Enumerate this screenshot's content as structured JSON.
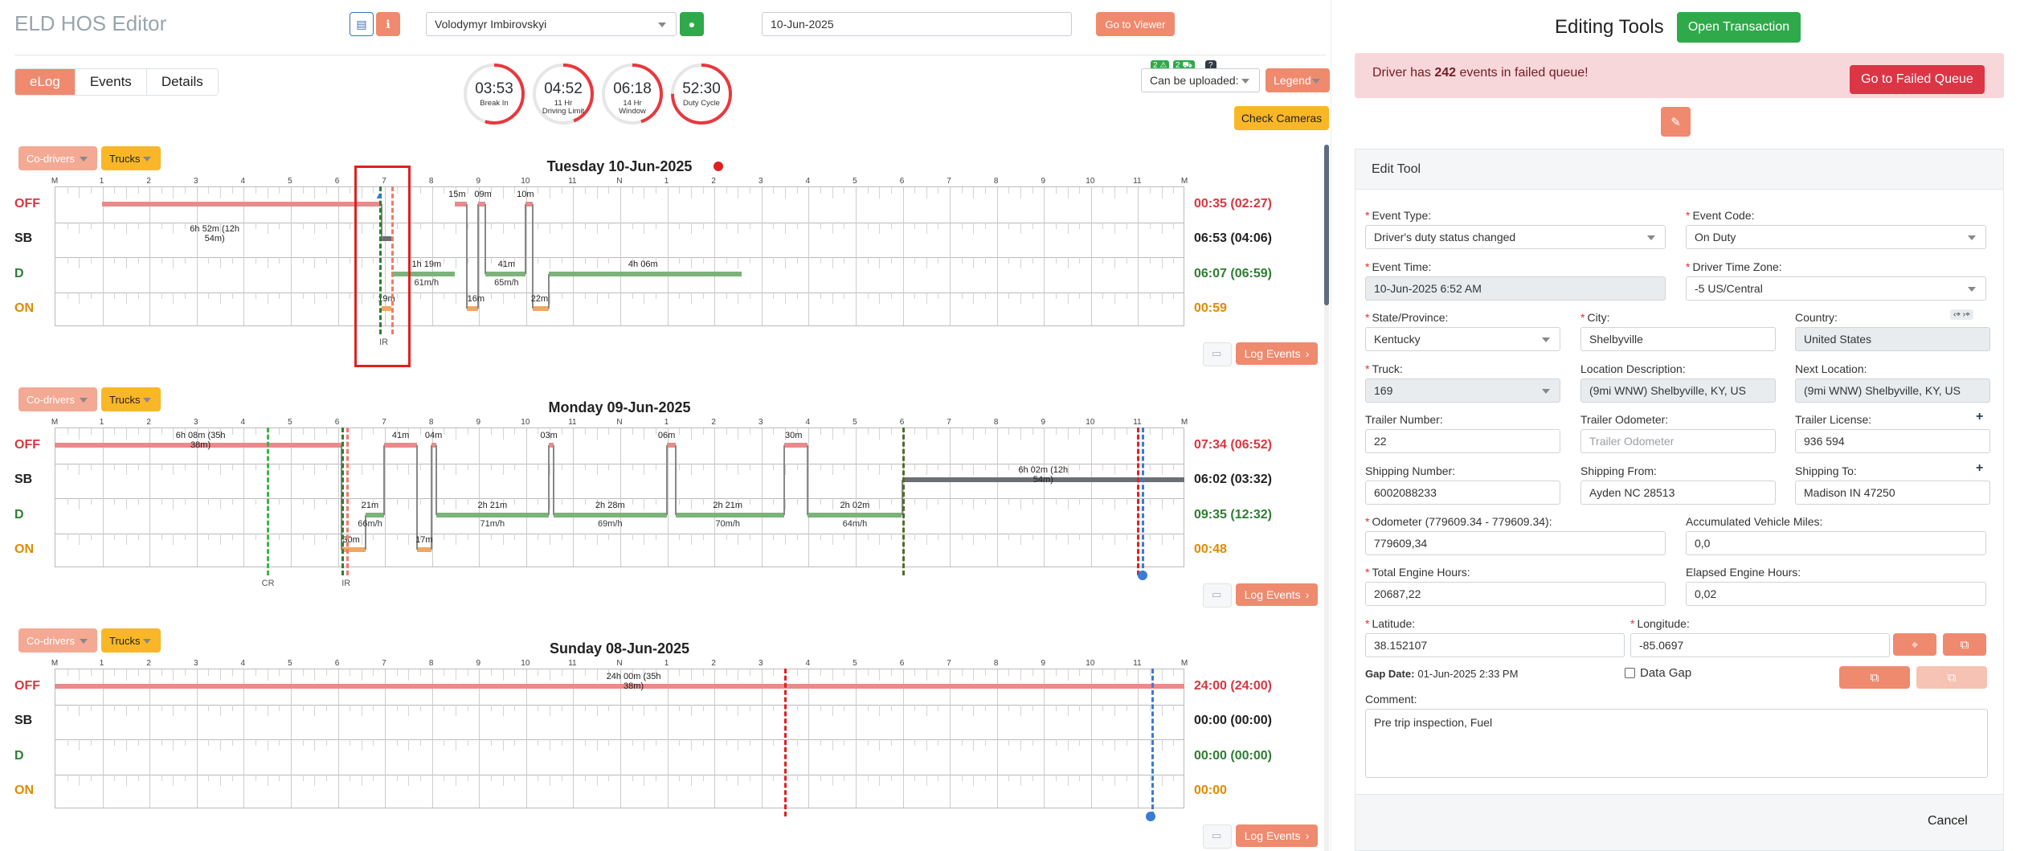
{
  "app": {
    "title": "ELD HOS Editor"
  },
  "header": {
    "driver": "Volodymyr Imbirovskyi",
    "date": "10-Jun-2025",
    "go_viewer": "Go to Viewer"
  },
  "tabs": [
    {
      "label": "eLog"
    },
    {
      "label": "Events"
    },
    {
      "label": "Details"
    }
  ],
  "gauges": [
    {
      "value": "03:53",
      "label": "Break In",
      "fraction": 0.55
    },
    {
      "value": "04:52",
      "label": "11 Hr\nDriving Limit",
      "fraction": 0.44
    },
    {
      "value": "06:18",
      "label": "14 Hr\nWindow",
      "fraction": 0.45
    },
    {
      "value": "52:30",
      "label": "Duty Cycle",
      "fraction": 0.75
    }
  ],
  "upload": {
    "badge1": "2 ⚠",
    "badge2": "2 ⛟",
    "badge3": "?",
    "label": "Can be uploaded:",
    "legend": "Legend",
    "check_cameras": "Check Cameras"
  },
  "common": {
    "codrivers": "Co-drivers",
    "trucks": "Trucks",
    "log_events": "Log Events",
    "rows": [
      "OFF",
      "SB",
      "D",
      "ON"
    ],
    "hours": [
      "M",
      "1",
      "2",
      "3",
      "4",
      "5",
      "6",
      "7",
      "8",
      "9",
      "10",
      "11",
      "N",
      "1",
      "2",
      "3",
      "4",
      "5",
      "6",
      "7",
      "8",
      "9",
      "10",
      "11",
      "M"
    ]
  },
  "days": [
    {
      "title": "Tuesday 10-Jun-2025",
      "totals": [
        "00:35 (02:27)",
        "06:53 (04:06)",
        "06:07 (06:59)",
        "00:59"
      ],
      "segments": [
        [
          0,
          1,
          6.95
        ],
        [
          1,
          6.95,
          7.15
        ],
        [
          3,
          6.95,
          7.15
        ],
        [
          0,
          8.5,
          8.75
        ],
        [
          3,
          8.75,
          9.0
        ],
        [
          0,
          9.0,
          9.15
        ],
        [
          2,
          9.15,
          10.0
        ],
        [
          0,
          10.0,
          10.15
        ],
        [
          3,
          10.15,
          10.5
        ],
        [
          2,
          10.5,
          14.6
        ],
        [
          0,
          10.5,
          10.5
        ],
        [
          2,
          7.15,
          8.5
        ]
      ],
      "labels": [
        [
          "6h 52m (12h 54m)",
          1,
          3.4
        ],
        [
          "15m",
          0,
          8.55
        ],
        [
          "09m",
          0,
          9.1
        ],
        [
          "10m",
          0,
          10.0
        ],
        [
          "1h 19m",
          2,
          7.9
        ],
        [
          "41m",
          2,
          9.6
        ],
        [
          "4h 06m",
          2,
          12.5
        ],
        [
          "19m",
          3,
          7.05
        ],
        [
          "16m",
          3,
          8.95
        ],
        [
          "22m",
          3,
          10.3
        ]
      ],
      "speeds": [
        [
          "61m/h",
          7.9
        ],
        [
          "65m/h",
          9.6
        ]
      ],
      "dash": [
        [
          7.0,
          "#f07a6a"
        ],
        [
          6.9,
          "#2e7d32"
        ]
      ],
      "marks": [
        "IR"
      ]
    },
    {
      "title": "Monday 09-Jun-2025",
      "totals": [
        "07:34 (06:52)",
        "06:02 (03:32)",
        "09:35 (12:32)",
        "00:48"
      ],
      "segments": [
        [
          0,
          0,
          6.1
        ],
        [
          3,
          6.1,
          6.6
        ],
        [
          2,
          6.6,
          7.0
        ],
        [
          0,
          7.0,
          7.7
        ],
        [
          3,
          7.7,
          8.0
        ],
        [
          0,
          8.0,
          8.1
        ],
        [
          2,
          8.1,
          10.5
        ],
        [
          0,
          10.5,
          10.6
        ],
        [
          2,
          10.6,
          13.0
        ],
        [
          0,
          13.0,
          13.2
        ],
        [
          2,
          13.2,
          15.5
        ],
        [
          0,
          15.5,
          16.0
        ],
        [
          2,
          16.0,
          18.0
        ],
        [
          1,
          18.0,
          24.0
        ]
      ],
      "labels": [
        [
          "6h 08m (35h 38m)",
          0,
          3.1
        ],
        [
          "41m",
          0,
          7.35
        ],
        [
          "04m",
          0,
          8.05
        ],
        [
          "03m",
          0,
          10.5
        ],
        [
          "06m",
          0,
          13.0
        ],
        [
          "30m",
          0,
          15.7
        ],
        [
          "21m",
          2,
          6.7
        ],
        [
          "2h 21m",
          2,
          9.3
        ],
        [
          "2h 28m",
          2,
          11.8
        ],
        [
          "2h 21m",
          2,
          14.3
        ],
        [
          "2h 02m",
          2,
          17.0
        ],
        [
          "6h 02m (12h 54m)",
          1,
          21.0
        ],
        [
          "30m",
          3,
          6.3
        ],
        [
          "17m",
          3,
          7.85
        ]
      ],
      "speeds": [
        [
          "66m/h",
          6.7
        ],
        [
          "71m/h",
          9.3
        ],
        [
          "69m/h",
          11.8
        ],
        [
          "70m/h",
          14.3
        ],
        [
          "64m/h",
          17.0
        ]
      ],
      "marks": [
        "CR",
        "IR"
      ]
    },
    {
      "title": "Sunday 08-Jun-2025",
      "totals": [
        "24:00 (24:00)",
        "00:00 (00:00)",
        "00:00 (00:00)",
        "00:00"
      ],
      "segments": [
        [
          0,
          0,
          24
        ]
      ],
      "labels": [
        [
          "24h 00m (35h 38m)",
          0,
          12.3
        ]
      ],
      "speeds": [],
      "marks": []
    }
  ],
  "right": {
    "title": "Editing Tools",
    "open_transaction": "Open Transaction",
    "alert_prefix": "Driver has ",
    "alert_count": "242",
    "alert_suffix": " events in failed queue!",
    "failed_queue": "Go to Failed Queue",
    "edit_tool": "Edit Tool",
    "cancel": "Cancel",
    "fields": {
      "event_type": {
        "label": "Event Type:",
        "value": "Driver's duty status changed"
      },
      "event_code": {
        "label": "Event Code:",
        "value": "On Duty"
      },
      "event_time": {
        "label": "Event Time:",
        "value": "10-Jun-2025 6:52 AM"
      },
      "time_zone": {
        "label": "Driver Time Zone:",
        "value": "-5 US/Central"
      },
      "state": {
        "label": "State/Province:",
        "value": "Kentucky"
      },
      "city": {
        "label": "City:",
        "value": "Shelbyville"
      },
      "country": {
        "label": "Country:",
        "value": "United States"
      },
      "truck": {
        "label": "Truck:",
        "value": "169"
      },
      "location": {
        "label": "Location Description:",
        "value": "(9mi WNW) Shelbyville, KY, US"
      },
      "next_location": {
        "label": "Next Location:",
        "value": "(9mi WNW) Shelbyville, KY, US"
      },
      "trailer_number": {
        "label": "Trailer Number:",
        "value": "22"
      },
      "trailer_odometer": {
        "label": "Trailer Odometer:",
        "placeholder": "Trailer Odometer"
      },
      "trailer_license": {
        "label": "Trailer License:",
        "value": "936 594"
      },
      "shipping_number": {
        "label": "Shipping Number:",
        "value": "6002088233"
      },
      "shipping_from": {
        "label": "Shipping From:",
        "value": "Ayden NC 28513"
      },
      "shipping_to": {
        "label": "Shipping To:",
        "value": "Madison IN 47250"
      },
      "odometer": {
        "label": "Odometer (779609.34 - 779609.34):",
        "value": "779609,34"
      },
      "acc_miles": {
        "label": "Accumulated Vehicle Miles:",
        "value": "0,0"
      },
      "engine_hours": {
        "label": "Total Engine Hours:",
        "value": "20687,22"
      },
      "elapsed_hours": {
        "label": "Elapsed Engine Hours:",
        "value": "0,02"
      },
      "latitude": {
        "label": "Latitude:",
        "value": "38.152107"
      },
      "longitude": {
        "label": "Longitude:",
        "value": "-85.0697"
      },
      "gap_date_label": "Gap Date:",
      "gap_date": "01-Jun-2025 2:33 PM",
      "data_gap": "Data Gap",
      "comment": {
        "label": "Comment:",
        "value": "Pre trip inspection, Fuel"
      }
    }
  }
}
